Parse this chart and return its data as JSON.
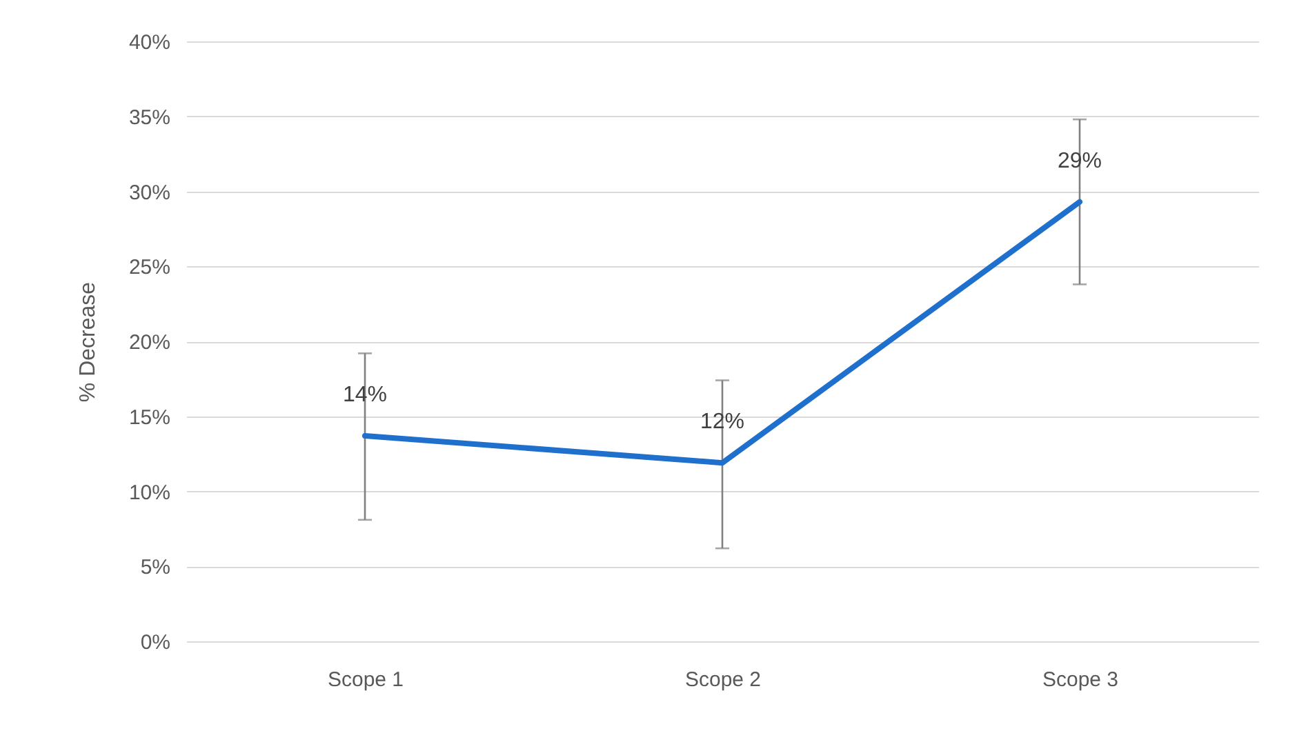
{
  "chart_data": {
    "type": "line",
    "ylabel": "% Decrease",
    "categories": [
      "Scope 1",
      "Scope 2",
      "Scope 3"
    ],
    "series": [
      {
        "color": "#1f6fcc",
        "values": [
          13.7,
          11.9,
          29.3
        ],
        "errors": [
          [
            8.1,
            19.2
          ],
          [
            6.2,
            17.4
          ],
          [
            23.8,
            34.8
          ]
        ],
        "value_labels": [
          "14%",
          "12%",
          "29%"
        ]
      }
    ],
    "ylim": [
      0,
      40
    ],
    "yticks": [
      {
        "value": 0,
        "label": "0%"
      },
      {
        "value": 5,
        "label": "5%"
      },
      {
        "value": 10,
        "label": "10%"
      },
      {
        "value": 15,
        "label": "15%"
      },
      {
        "value": 20,
        "label": "20%"
      },
      {
        "value": 25,
        "label": "25%"
      },
      {
        "value": 30,
        "label": "30%"
      },
      {
        "value": 35,
        "label": "35%"
      },
      {
        "value": 40,
        "label": "40%"
      }
    ],
    "grid": "y",
    "marker": "none",
    "line_style": "solid"
  }
}
